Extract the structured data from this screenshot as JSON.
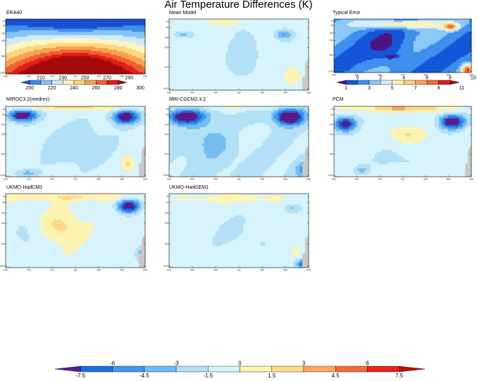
{
  "title": "Air Temperature Differences (K)",
  "colors": {
    "diff": [
      "#5b1a8a",
      "#1b6ee0",
      "#3c98ef",
      "#74bcf2",
      "#b2e0f6",
      "#d7f3fb",
      "#fdf3b3",
      "#fcd98a",
      "#f9a85c",
      "#f26b3a",
      "#e8251c",
      "#b5120f"
    ],
    "era": [
      "#1a4fd0",
      "#3e8ef0",
      "#86c4f6",
      "#cdebf8",
      "#fef5c6",
      "#fcd77e",
      "#f7a14f",
      "#ee6130",
      "#e21e16",
      "#a50b0b"
    ],
    "err": [
      "#4b1580",
      "#1556d8",
      "#3f8fef",
      "#8bc9f6",
      "#d3efff",
      "#fff2b5",
      "#fcd37e",
      "#f7a652",
      "#ee6b31",
      "#d91f18",
      "#a10f0f"
    ],
    "grey": "#c8c8c8"
  },
  "panels": {
    "era40": "ERA40",
    "mean": "Mean Model",
    "error": "Typical Error",
    "miroc": "MIROC3.2(medres)",
    "mri": "MRI-CGCM2.3.2",
    "pcm": "PCM",
    "hadcm3": "UKMO-HadCM3",
    "hadgem1": "UKMO-HadGEM1"
  },
  "chart_data": [
    {
      "type": "heatmap",
      "panel": "ERA40",
      "colorbar": {
        "upper_labels": [
          "210",
          "230",
          "250",
          "270",
          "290"
        ],
        "lower_labels": [
          "200",
          "220",
          "240",
          "260",
          "280",
          "300"
        ],
        "range": [
          200,
          300
        ]
      }
    },
    {
      "type": "heatmap",
      "panel": "Typical Error",
      "colorbar": {
        "upper_labels": [
          "0",
          "2",
          "4",
          "6",
          "8",
          "10"
        ],
        "lower_labels": [
          "1",
          "3",
          "5",
          "7",
          "9",
          "11"
        ],
        "range": [
          0,
          11
        ]
      }
    },
    {
      "type": "heatmap",
      "panel": "Differences (Mean Model, MIROC3.2(medres), MRI-CGCM2.3.2, PCM, UKMO-HadCM3, UKMO-HadGEM1)",
      "colorbar": {
        "upper_labels": [
          "-6",
          "-3",
          "0",
          "3",
          "6"
        ],
        "lower_labels": [
          "-7.5",
          "-4.5",
          "-1.5",
          "1.5",
          "4.5",
          "7.5"
        ],
        "levels": [
          -7.5,
          -6,
          -4.5,
          -3,
          -1.5,
          0,
          1.5,
          3,
          4.5,
          6,
          7.5
        ],
        "range": [
          -7.5,
          7.5
        ]
      }
    }
  ]
}
